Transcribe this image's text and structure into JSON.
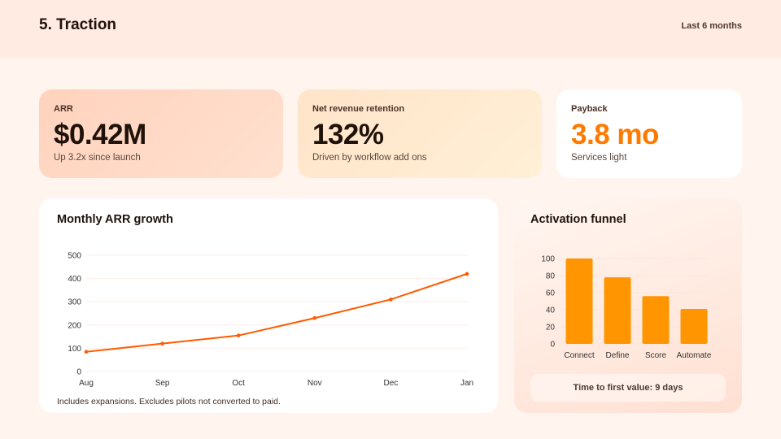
{
  "header": {
    "title": "5. Traction",
    "period": "Last 6 months"
  },
  "kpis": [
    {
      "label": "ARR",
      "value": "$0.42M",
      "sub": "Up 3.2x since launch"
    },
    {
      "label": "Net revenue retention",
      "value": "132%",
      "sub": "Driven by workflow add ons"
    },
    {
      "label": "Payback",
      "value": "3.8 mo",
      "sub": "Services light"
    }
  ],
  "colors": {
    "line": "#ff5a00",
    "bar": "#ff9500",
    "accent": "#ff7a00"
  },
  "growth": {
    "title": "Monthly ARR growth",
    "note": "Includes expansions. Excludes pilots not converted to paid."
  },
  "funnel": {
    "title": "Activation funnel",
    "pill": "Time to first value: 9 days"
  },
  "chart_data": [
    {
      "type": "line",
      "categories": [
        "Aug",
        "Sep",
        "Oct",
        "Nov",
        "Dec",
        "Jan"
      ],
      "values": [
        85,
        120,
        155,
        230,
        310,
        420
      ],
      "ylim": [
        0,
        500
      ],
      "yticks": [
        0,
        100,
        200,
        300,
        400,
        500
      ],
      "grid": true
    },
    {
      "type": "bar",
      "categories": [
        "Connect",
        "Define",
        "Score",
        "Automate"
      ],
      "values": [
        100,
        78,
        56,
        41
      ],
      "ylim": [
        0,
        100
      ],
      "yticks": [
        0,
        20,
        40,
        60,
        80,
        100
      ],
      "grid": true
    }
  ]
}
